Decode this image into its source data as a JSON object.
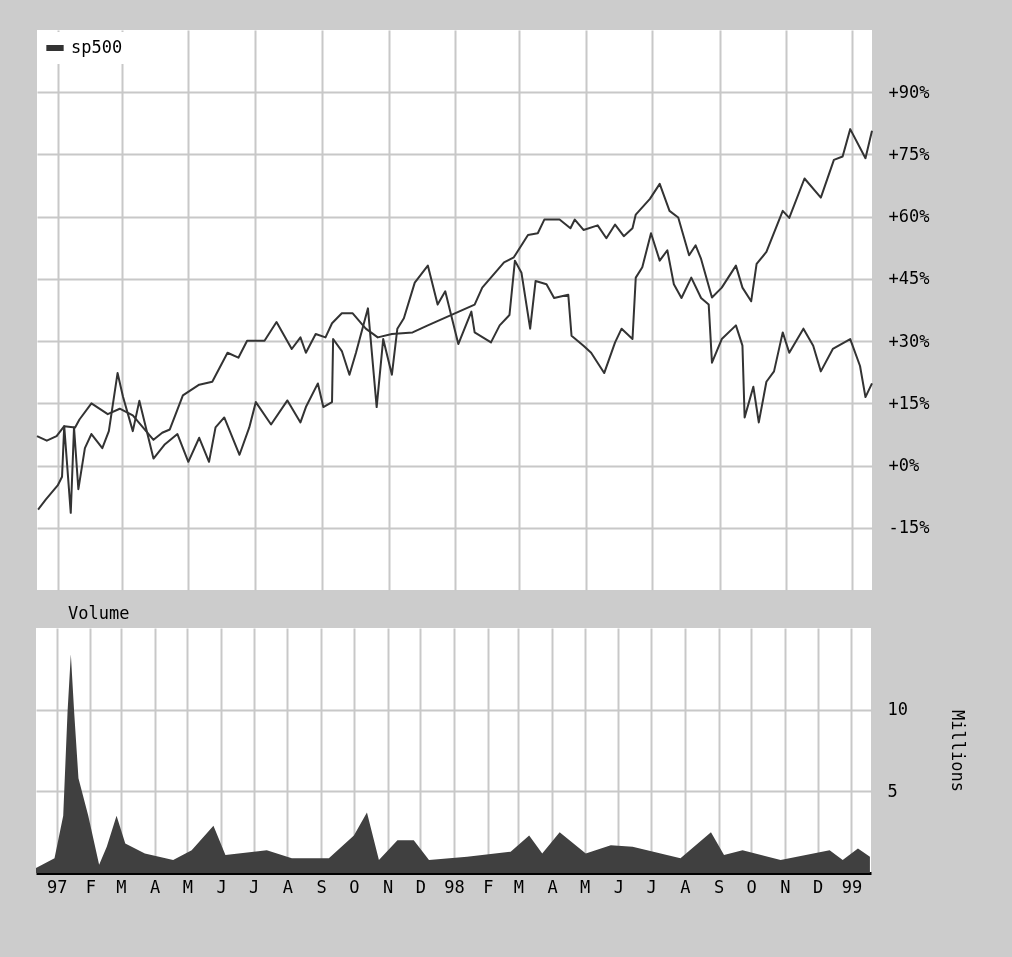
{
  "chart_data": [
    {
      "type": "line",
      "xlim": [
        "1996-12-13",
        "1999-01-19"
      ],
      "ylim": [
        -30,
        105
      ],
      "xticks": [
        "1997-01-01",
        "1997-02-01",
        "1997-03-01",
        "1997-04-01",
        "1997-05-01",
        "1997-06-01",
        "1997-07-01",
        "1997-08-01",
        "1997-09-01",
        "1997-10-01",
        "1997-11-01",
        "1997-12-01",
        "1998-01-01",
        "1998-02-01",
        "1998-03-01",
        "1998-04-01",
        "1998-05-01",
        "1998-06-01",
        "1998-07-01",
        "1998-08-01",
        "1998-09-01",
        "1998-10-01",
        "1998-11-01",
        "1998-12-01",
        "1999-01-01"
      ],
      "yticks": [
        {
          "value": 90,
          "label": "+90%"
        },
        {
          "value": 75,
          "label": "+75%"
        },
        {
          "value": 60,
          "label": "+60%"
        },
        {
          "value": 45,
          "label": "+45%"
        },
        {
          "value": 30,
          "label": "+30%"
        },
        {
          "value": 15,
          "label": "+15%"
        },
        {
          "value": 0,
          "label": "+0%"
        },
        {
          "value": -15,
          "label": "-15%"
        }
      ],
      "grid": true,
      "legend": "top left",
      "tick_labels": "y",
      "series": [
        {
          "name": "sp500",
          "color": "#333333",
          "x": [
            "1996-12-13",
            "1996-12-22",
            "1996-12-31",
            "1997-01-07",
            "1997-01-17",
            "1997-01-21",
            "1997-02-01",
            "1997-02-16",
            "1997-02-27",
            "1997-03-11",
            "1997-03-30",
            "1997-04-07",
            "1997-04-14",
            "1997-04-26",
            "1997-05-11",
            "1997-05-23",
            "1997-06-06",
            "1997-06-16",
            "1997-06-24",
            "1997-07-10",
            "1997-07-21",
            "1997-08-04",
            "1997-08-12",
            "1997-08-17",
            "1997-08-26",
            "1997-09-04",
            "1997-09-10",
            "1997-09-19",
            "1997-09-29",
            "1997-10-11",
            "1997-10-22",
            "1997-11-04",
            "1997-11-23",
            "1997-12-07",
            "1998-01-19",
            "1998-01-26",
            "1998-02-15",
            "1998-02-24",
            "1998-03-09",
            "1998-03-18",
            "1998-03-24",
            "1998-04-07",
            "1998-04-17",
            "1998-04-21",
            "1998-04-29",
            "1998-05-12",
            "1998-05-20",
            "1998-05-28",
            "1998-06-05",
            "1998-06-13",
            "1998-06-16",
            "1998-06-29",
            "1998-07-08",
            "1998-07-17",
            "1998-07-25",
            "1998-08-04",
            "1998-08-10",
            "1998-08-15",
            "1998-08-25",
            "1998-09-03",
            "1998-09-16",
            "1998-09-22",
            "1998-09-30",
            "1998-10-05",
            "1998-10-14",
            "1998-10-29",
            "1998-11-04",
            "1998-11-18",
            "1998-12-03",
            "1998-12-15",
            "1998-12-23",
            "1998-12-30",
            "1999-01-13",
            "1999-01-19"
          ],
          "values": [
            7.1,
            6.0,
            7.1,
            9.5,
            9.2,
            11.1,
            15.0,
            12.4,
            13.7,
            12.1,
            6.2,
            7.9,
            8.7,
            16.9,
            19.5,
            20.2,
            27.2,
            26.0,
            30.1,
            30.1,
            34.6,
            28.1,
            30.9,
            27.2,
            31.7,
            30.9,
            34.3,
            36.7,
            36.7,
            33.0,
            30.9,
            31.7,
            32.1,
            33.8,
            38.8,
            42.9,
            49.0,
            50.2,
            55.6,
            56.0,
            59.3,
            59.3,
            57.2,
            59.3,
            56.8,
            57.9,
            54.8,
            58.1,
            55.3,
            57.2,
            60.5,
            64.3,
            67.9,
            61.4,
            59.8,
            50.7,
            53.1,
            49.8,
            40.5,
            42.9,
            48.2,
            42.9,
            39.6,
            48.6,
            51.5,
            61.4,
            59.7,
            69.2,
            64.6,
            73.7,
            74.5,
            81.1,
            74.1,
            80.7
          ]
        },
        {
          "color": "#333333",
          "x": [
            "1996-12-14",
            "1996-12-21",
            "1997-01-01",
            "1997-01-05",
            "1997-01-07",
            "1997-01-13",
            "1997-01-16",
            "1997-01-20",
            "1997-01-26",
            "1997-02-01",
            "1997-02-11",
            "1997-02-17",
            "1997-02-25",
            "1997-03-02",
            "1997-03-11",
            "1997-03-17",
            "1997-03-30",
            "1997-04-09",
            "1997-04-21",
            "1997-05-01",
            "1997-05-11",
            "1997-05-20",
            "1997-05-26",
            "1997-06-03",
            "1997-06-17",
            "1997-06-26",
            "1997-07-02",
            "1997-07-16",
            "1997-07-31",
            "1997-08-12",
            "1997-08-17",
            "1997-08-28",
            "1997-09-02",
            "1997-09-10",
            "1997-09-11",
            "1997-09-19",
            "1997-09-26",
            "1997-10-02",
            "1997-10-13",
            "1997-10-21",
            "1997-10-27",
            "1997-11-04",
            "1997-11-09",
            "1997-11-15",
            "1997-11-25",
            "1997-12-07",
            "1997-12-16",
            "1997-12-23",
            "1998-01-04",
            "1998-01-16",
            "1998-01-19",
            "1998-02-03",
            "1998-02-11",
            "1998-02-20",
            "1998-02-25",
            "1998-03-03",
            "1998-03-11",
            "1998-03-16",
            "1998-03-26",
            "1998-04-02",
            "1998-04-15",
            "1998-04-18",
            "1998-04-29",
            "1998-05-06",
            "1998-05-18",
            "1998-05-28",
            "1998-06-03",
            "1998-06-13",
            "1998-06-16",
            "1998-06-22",
            "1998-06-30",
            "1998-07-08",
            "1998-07-15",
            "1998-07-21",
            "1998-07-28",
            "1998-08-06",
            "1998-08-15",
            "1998-08-22",
            "1998-08-25",
            "1998-09-03",
            "1998-09-16",
            "1998-09-22",
            "1998-09-24",
            "1998-10-02",
            "1998-10-07",
            "1998-10-14",
            "1998-10-21",
            "1998-10-29",
            "1998-11-04",
            "1998-11-17",
            "1998-11-26",
            "1998-12-03",
            "1998-12-14",
            "1998-12-30",
            "1999-01-08",
            "1999-01-13",
            "1999-01-19"
          ],
          "values": [
            -10.6,
            -8.2,
            -4.8,
            -2.7,
            9.5,
            -11.4,
            9.2,
            -5.7,
            4.2,
            7.6,
            4.2,
            8.3,
            22.3,
            16.6,
            8.3,
            15.6,
            1.7,
            5.0,
            7.6,
            0.9,
            6.7,
            0.9,
            9.2,
            11.6,
            2.6,
            9.2,
            15.3,
            9.9,
            15.7,
            10.4,
            14.1,
            19.8,
            14.1,
            15.3,
            30.5,
            27.6,
            21.9,
            27.2,
            37.9,
            14.1,
            30.5,
            21.9,
            33.0,
            35.5,
            44.1,
            48.2,
            38.8,
            42.0,
            29.3,
            37.1,
            32.1,
            29.7,
            33.8,
            36.3,
            49.4,
            46.5,
            33.0,
            44.5,
            43.7,
            40.4,
            41.2,
            31.3,
            28.9,
            27.2,
            22.3,
            29.7,
            33.0,
            30.5,
            45.3,
            47.8,
            56.0,
            49.4,
            51.9,
            43.7,
            40.4,
            45.3,
            40.4,
            38.8,
            24.8,
            30.5,
            33.8,
            28.9,
            11.6,
            19.0,
            10.4,
            20.2,
            22.7,
            32.1,
            27.2,
            33.0,
            28.9,
            22.7,
            28.1,
            30.5,
            24.0,
            16.5,
            19.8
          ]
        }
      ]
    },
    {
      "type": "area",
      "ylabel": "Millions",
      "xlim": [
        "1996-12-13",
        "1999-01-19"
      ],
      "ylim": [
        0,
        15
      ],
      "yticks": [
        5,
        10
      ],
      "xticks": [
        {
          "value": "1997-01-01",
          "label": "97"
        },
        {
          "value": "1997-02-01",
          "label": "F"
        },
        {
          "value": "1997-03-01",
          "label": "M"
        },
        {
          "value": "1997-04-01",
          "label": "A"
        },
        {
          "value": "1997-05-01",
          "label": "M"
        },
        {
          "value": "1997-06-01",
          "label": "J"
        },
        {
          "value": "1997-07-01",
          "label": "J"
        },
        {
          "value": "1997-08-01",
          "label": "A"
        },
        {
          "value": "1997-09-01",
          "label": "S"
        },
        {
          "value": "1997-10-01",
          "label": "O"
        },
        {
          "value": "1997-11-01",
          "label": "N"
        },
        {
          "value": "1997-12-01",
          "label": "D"
        },
        {
          "value": "1998-01-01",
          "label": "98"
        },
        {
          "value": "1998-02-01",
          "label": "F"
        },
        {
          "value": "1998-03-01",
          "label": "M"
        },
        {
          "value": "1998-04-01",
          "label": "A"
        },
        {
          "value": "1998-05-01",
          "label": "M"
        },
        {
          "value": "1998-06-01",
          "label": "J"
        },
        {
          "value": "1998-07-01",
          "label": "J"
        },
        {
          "value": "1998-08-01",
          "label": "A"
        },
        {
          "value": "1998-09-01",
          "label": "S"
        },
        {
          "value": "1998-10-01",
          "label": "O"
        },
        {
          "value": "1998-11-01",
          "label": "N"
        },
        {
          "value": "1998-12-01",
          "label": "D"
        },
        {
          "value": "1999-01-01",
          "label": "99"
        }
      ],
      "grid": true,
      "legend": "top",
      "series": [
        {
          "name": "Volume",
          "color": "#404040",
          "x": [
            "1996-12-13",
            "1996-12-30",
            "1997-01-07",
            "1997-01-11",
            "1997-01-14",
            "1997-01-17",
            "1997-01-21",
            "1997-01-30",
            "1997-02-09",
            "1997-02-16",
            "1997-02-25",
            "1997-03-05",
            "1997-03-23",
            "1997-04-18",
            "1997-05-05",
            "1997-05-25",
            "1997-06-05",
            "1997-07-13",
            "1997-08-05",
            "1997-09-08",
            "1997-10-01",
            "1997-10-13",
            "1997-10-24",
            "1997-11-10",
            "1997-11-25",
            "1997-12-09",
            "1998-01-13",
            "1998-02-22",
            "1998-03-11",
            "1998-03-23",
            "1998-04-08",
            "1998-05-02",
            "1998-05-25",
            "1998-06-14",
            "1998-07-28",
            "1998-08-25",
            "1998-09-06",
            "1998-09-23",
            "1998-10-28",
            "1998-12-12",
            "1998-12-24",
            "1999-01-07",
            "1999-01-18"
          ],
          "values": [
            0.3,
            0.9,
            3.5,
            9.9,
            13.4,
            9.9,
            5.8,
            3.5,
            0.5,
            1.6,
            3.5,
            1.8,
            1.2,
            0.8,
            1.4,
            2.9,
            1.1,
            1.4,
            0.9,
            0.9,
            2.3,
            3.7,
            0.8,
            2.0,
            2.0,
            0.8,
            1.0,
            1.3,
            2.3,
            1.2,
            2.5,
            1.2,
            1.7,
            1.6,
            0.9,
            2.5,
            1.1,
            1.4,
            0.8,
            1.4,
            0.8,
            1.5,
            1.0
          ]
        }
      ]
    }
  ]
}
